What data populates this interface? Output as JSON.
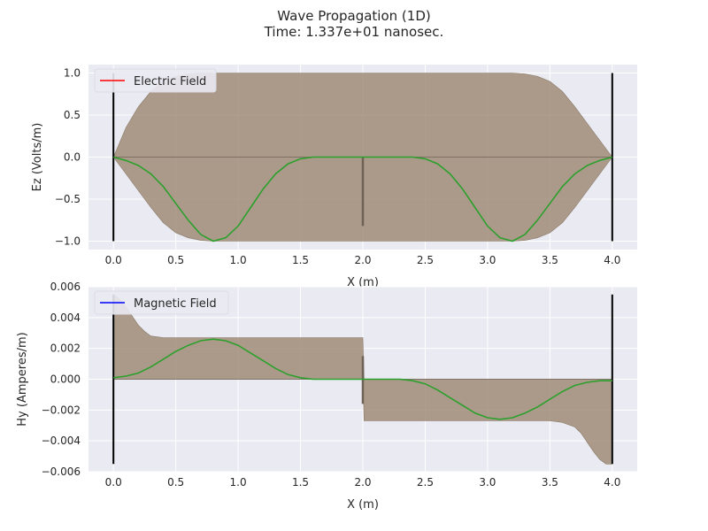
{
  "figure": {
    "title": "Wave Propagation (1D)",
    "subtitle": "Time: 1.337e+01 nanosec."
  },
  "colors": {
    "background": "#eaeaf2",
    "grid": "#ffffff",
    "electric": "#ff0000",
    "magnetic": "#0000ff",
    "overlay_line": "#2ca02c",
    "envelope_fill": "#a08c78",
    "boundary": "#000000",
    "text": "#262626"
  },
  "chart_data": [
    {
      "type": "line",
      "panel": "top",
      "xlabel": "X (m)",
      "ylabel": "Ez (Volts/m)",
      "xlim": [
        -0.2,
        4.2
      ],
      "ylim": [
        -1.1,
        1.1
      ],
      "xticks": [
        0.0,
        0.5,
        1.0,
        1.5,
        2.0,
        2.5,
        3.0,
        3.5,
        4.0
      ],
      "xtick_labels": [
        "0.0",
        "0.5",
        "1.0",
        "1.5",
        "2.0",
        "2.5",
        "3.0",
        "3.5",
        "4.0"
      ],
      "yticks": [
        1.0,
        0.5,
        0.0,
        -0.5,
        -1.0
      ],
      "ytick_labels": [
        "1.0",
        "0.5",
        "0.0",
        "−0.5",
        "−1.0"
      ],
      "grid": true,
      "legend": {
        "placement": "upper-left",
        "entries": [
          {
            "label": "Electric Field",
            "color": "#ff0000"
          }
        ]
      },
      "boundaries": [
        {
          "x": 0.0,
          "y": [
            -1.0,
            1.0
          ]
        },
        {
          "x": 4.0,
          "y": [
            -1.0,
            1.0
          ]
        }
      ],
      "envelope": {
        "x": [
          0.0,
          0.1,
          0.2,
          0.3,
          0.4,
          0.5,
          0.6,
          0.7,
          0.8,
          1.0,
          1.5,
          2.0,
          2.5,
          3.0,
          3.2,
          3.3,
          3.4,
          3.5,
          3.6,
          3.7,
          3.8,
          3.9,
          4.0
        ],
        "upper": [
          0.0,
          0.35,
          0.6,
          0.78,
          0.9,
          0.96,
          0.99,
          1.0,
          1.0,
          1.0,
          1.0,
          1.0,
          1.0,
          1.0,
          1.0,
          0.99,
          0.96,
          0.9,
          0.78,
          0.6,
          0.4,
          0.2,
          0.0
        ],
        "lower": [
          0.0,
          -0.2,
          -0.4,
          -0.6,
          -0.78,
          -0.9,
          -0.96,
          -0.99,
          -1.0,
          -1.0,
          -1.0,
          -1.0,
          -1.0,
          -1.0,
          -1.0,
          -0.99,
          -0.96,
          -0.9,
          -0.78,
          -0.6,
          -0.4,
          -0.2,
          0.0
        ]
      },
      "series": [
        {
          "color": "#2ca02c",
          "x": [
            0.0,
            0.1,
            0.2,
            0.3,
            0.4,
            0.5,
            0.6,
            0.7,
            0.8,
            0.9,
            1.0,
            1.1,
            1.2,
            1.3,
            1.4,
            1.5,
            1.6,
            1.7,
            1.8,
            1.9,
            2.0,
            2.1,
            2.2,
            2.3,
            2.4,
            2.5,
            2.6,
            2.7,
            2.8,
            2.9,
            3.0,
            3.1,
            3.2,
            3.3,
            3.4,
            3.5,
            3.6,
            3.7,
            3.8,
            3.9,
            4.0
          ],
          "y": [
            0.0,
            -0.04,
            -0.1,
            -0.2,
            -0.35,
            -0.55,
            -0.75,
            -0.92,
            -1.0,
            -0.96,
            -0.82,
            -0.6,
            -0.38,
            -0.2,
            -0.08,
            -0.02,
            0.0,
            0.0,
            0.0,
            0.0,
            0.0,
            0.0,
            0.0,
            0.0,
            0.0,
            -0.02,
            -0.08,
            -0.2,
            -0.38,
            -0.6,
            -0.82,
            -0.96,
            -1.0,
            -0.92,
            -0.75,
            -0.55,
            -0.35,
            -0.2,
            -0.1,
            -0.04,
            0.0
          ]
        }
      ],
      "spikes": [
        {
          "x": 2.0,
          "y": [
            -0.82,
            0.0
          ]
        }
      ]
    },
    {
      "type": "line",
      "panel": "bottom",
      "xlabel": "X (m)",
      "ylabel": "Hy (Amperes/m)",
      "xlim": [
        -0.2,
        4.2
      ],
      "ylim": [
        -0.006,
        0.006
      ],
      "xticks": [
        0.0,
        0.5,
        1.0,
        1.5,
        2.0,
        2.5,
        3.0,
        3.5,
        4.0
      ],
      "xtick_labels": [
        "0.0",
        "0.5",
        "1.0",
        "1.5",
        "2.0",
        "2.5",
        "3.0",
        "3.5",
        "4.0"
      ],
      "yticks": [
        0.006,
        0.004,
        0.002,
        0.0,
        -0.002,
        -0.004,
        -0.006
      ],
      "ytick_labels": [
        "0.006",
        "0.004",
        "0.002",
        "0.000",
        "−0.002",
        "−0.004",
        "−0.006"
      ],
      "grid": true,
      "legend": {
        "placement": "upper-left",
        "entries": [
          {
            "label": "Magnetic Field",
            "color": "#0000ff"
          }
        ]
      },
      "boundaries": [
        {
          "x": 0.0,
          "y": [
            -0.0055,
            0.0055
          ]
        },
        {
          "x": 4.0,
          "y": [
            -0.0055,
            0.0055
          ]
        }
      ],
      "envelope": {
        "x": [
          0.0,
          0.05,
          0.1,
          0.15,
          0.2,
          0.25,
          0.3,
          0.4,
          1.0,
          1.99,
          2.0,
          2.01,
          3.0,
          3.5,
          3.6,
          3.7,
          3.75,
          3.8,
          3.85,
          3.9,
          3.95,
          4.0
        ],
        "upper": [
          0.0055,
          0.0052,
          0.0047,
          0.0041,
          0.0035,
          0.0031,
          0.0028,
          0.0027,
          0.0027,
          0.0027,
          0.0027,
          0.0,
          0.0,
          0.0,
          0.0,
          0.0,
          0.0,
          0.0,
          0.0,
          0.0,
          0.0,
          0.0
        ],
        "lower": [
          0.0,
          0.0,
          0.0,
          0.0,
          0.0,
          0.0,
          0.0,
          0.0,
          0.0,
          0.0,
          0.0,
          -0.0027,
          -0.0027,
          -0.0027,
          -0.0028,
          -0.0031,
          -0.0035,
          -0.0041,
          -0.0047,
          -0.0052,
          -0.0055,
          -0.0055
        ]
      },
      "series": [
        {
          "color": "#2ca02c",
          "x": [
            0.0,
            0.1,
            0.2,
            0.3,
            0.4,
            0.5,
            0.6,
            0.7,
            0.8,
            0.9,
            1.0,
            1.1,
            1.2,
            1.3,
            1.4,
            1.5,
            1.6,
            1.7,
            1.8,
            1.9,
            2.0,
            2.1,
            2.2,
            2.3,
            2.4,
            2.5,
            2.6,
            2.7,
            2.8,
            2.9,
            3.0,
            3.1,
            3.2,
            3.3,
            3.4,
            3.5,
            3.6,
            3.7,
            3.8,
            3.9,
            4.0
          ],
          "y": [
            0.0001,
            0.0002,
            0.0004,
            0.0008,
            0.0013,
            0.0018,
            0.0022,
            0.0025,
            0.0026,
            0.0025,
            0.0022,
            0.0017,
            0.0012,
            0.0007,
            0.0003,
            0.0001,
            0.0,
            0.0,
            0.0,
            0.0,
            0.0,
            0.0,
            0.0,
            0.0,
            -0.0001,
            -0.0003,
            -0.0007,
            -0.0012,
            -0.0017,
            -0.0022,
            -0.0025,
            -0.0026,
            -0.0025,
            -0.0022,
            -0.0018,
            -0.0013,
            -0.0008,
            -0.0004,
            -0.0002,
            -0.0001,
            -0.0001
          ]
        }
      ],
      "spikes": [
        {
          "x": 2.0,
          "y": [
            -0.0016,
            0.0015
          ]
        }
      ]
    }
  ]
}
